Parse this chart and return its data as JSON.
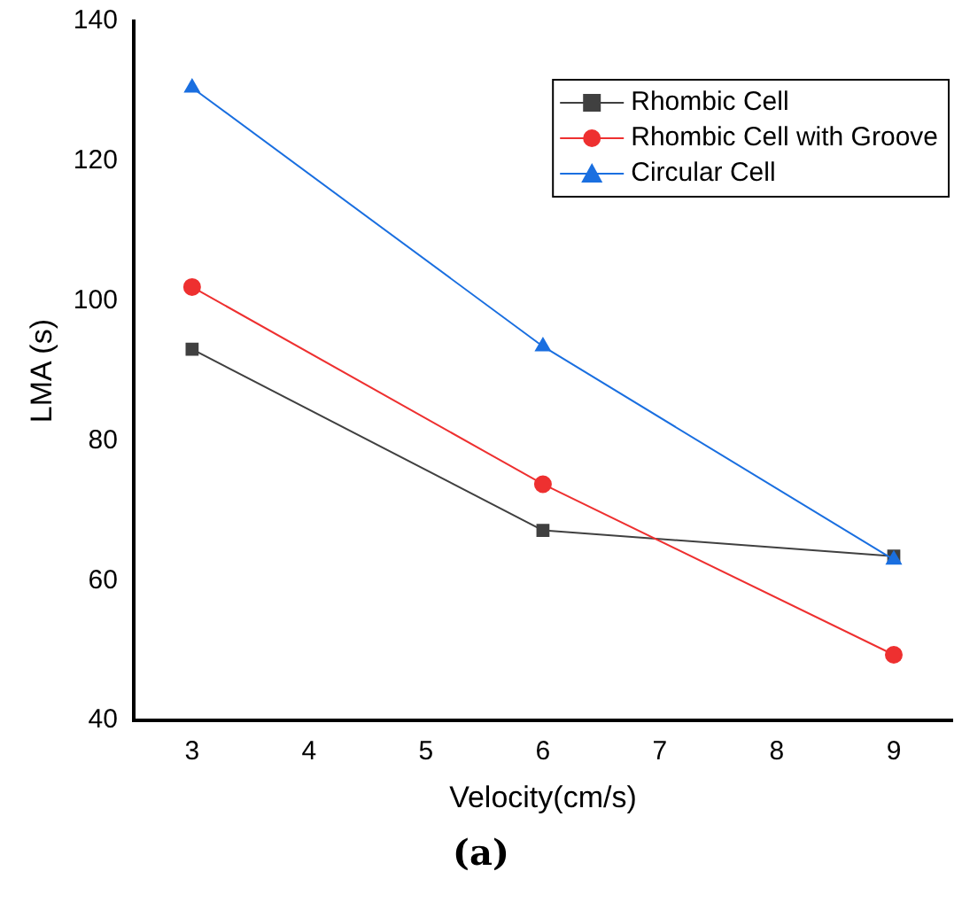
{
  "chart_data": {
    "type": "line",
    "xlabel": "Velocity(cm/s)",
    "ylabel": "LMA (s)",
    "x": [
      3,
      6,
      9
    ],
    "series": [
      {
        "name": "Rhombic Cell",
        "color": "#404040",
        "values": [
          93.1,
          67.2,
          63.5
        ],
        "marker": "square"
      },
      {
        "name": "Rhombic Cell with Groove",
        "color": "#ee3030",
        "values": [
          102,
          73.8,
          49.4
        ],
        "marker": "circle"
      },
      {
        "name": "Circular Cell",
        "color": "#1a6fe0",
        "values": [
          130.5,
          93.5,
          63
        ],
        "marker": "triangle"
      }
    ],
    "xlim": [
      2.5,
      9.5
    ],
    "xticks": [
      3,
      4,
      5,
      6,
      7,
      8,
      9
    ],
    "ylim": [
      40,
      140
    ],
    "yticks": [
      40,
      60,
      80,
      100,
      120,
      140
    ],
    "grid": false,
    "legend": "top right",
    "annotations": [
      "(a)"
    ]
  }
}
